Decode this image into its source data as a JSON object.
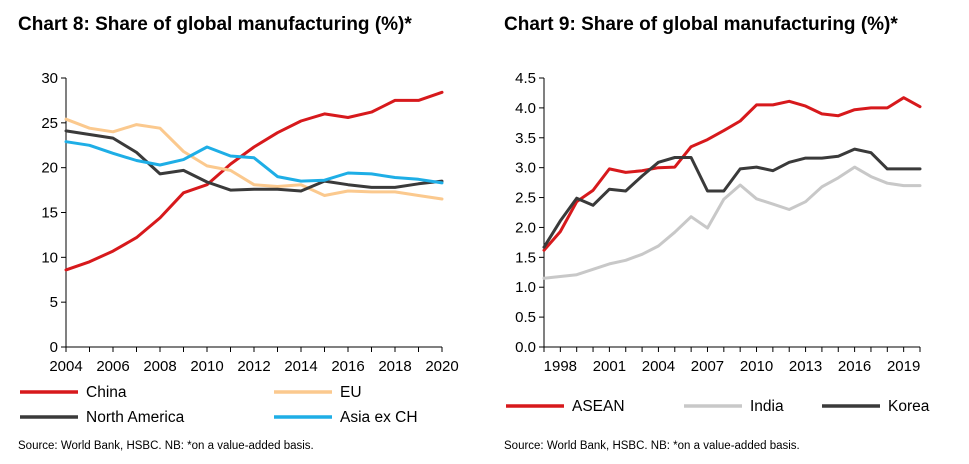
{
  "chart_data": [
    {
      "type": "line",
      "title": "Chart 8: Share of global manufacturing (%)*",
      "source": "Source: World Bank, HSBC. NB: *on a value-added basis.",
      "x": [
        2004,
        2005,
        2006,
        2007,
        2008,
        2009,
        2010,
        2011,
        2012,
        2013,
        2014,
        2015,
        2016,
        2017,
        2018,
        2019,
        2020
      ],
      "xticks": [
        "2004",
        "2006",
        "2008",
        "2010",
        "2012",
        "2014",
        "2016",
        "2018",
        "2020"
      ],
      "yticks": [
        "0",
        "5",
        "10",
        "15",
        "20",
        "25",
        "30"
      ],
      "ylim": [
        0,
        30
      ],
      "xlim": [
        2004,
        2020
      ],
      "grid": false,
      "legend_position": "bottom",
      "series": [
        {
          "name": "China",
          "color": "#d7191c",
          "values": [
            8.6,
            9.5,
            10.7,
            12.2,
            14.4,
            17.2,
            18.1,
            20.4,
            22.3,
            23.9,
            25.2,
            26.0,
            25.6,
            26.2,
            27.5,
            27.5,
            28.4
          ]
        },
        {
          "name": "EU",
          "color": "#fbc98e",
          "values": [
            25.4,
            24.4,
            24.0,
            24.8,
            24.4,
            21.8,
            20.2,
            19.7,
            18.1,
            17.9,
            18.1,
            16.9,
            17.4,
            17.3,
            17.3,
            16.9,
            16.5
          ]
        },
        {
          "name": "North America",
          "color": "#3a3a3a",
          "values": [
            24.1,
            23.7,
            23.3,
            21.7,
            19.3,
            19.7,
            18.4,
            17.5,
            17.6,
            17.6,
            17.4,
            18.5,
            18.1,
            17.8,
            17.8,
            18.2,
            18.5
          ]
        },
        {
          "name": "Asia ex CH",
          "color": "#1eaee6",
          "values": [
            22.9,
            22.5,
            21.6,
            20.8,
            20.3,
            20.9,
            22.3,
            21.3,
            21.1,
            19.0,
            18.5,
            18.6,
            19.4,
            19.3,
            18.9,
            18.7,
            18.3
          ]
        }
      ]
    },
    {
      "type": "line",
      "title": "Chart 9: Share of global manufacturing (%)*",
      "source": "Source: World Bank, HSBC. NB: *on a value-added basis.",
      "x": [
        1997,
        1998,
        1999,
        2000,
        2001,
        2002,
        2003,
        2004,
        2005,
        2006,
        2007,
        2008,
        2009,
        2010,
        2011,
        2012,
        2013,
        2014,
        2015,
        2016,
        2017,
        2018,
        2019,
        2020
      ],
      "xticks": [
        "1998",
        "2001",
        "2004",
        "2007",
        "2010",
        "2013",
        "2016",
        "2019"
      ],
      "yticks": [
        "0.0",
        "0.5",
        "1.0",
        "1.5",
        "2.0",
        "2.5",
        "3.0",
        "3.5",
        "4.0",
        "4.5"
      ],
      "ylim": [
        0,
        4.5
      ],
      "xlim": [
        1997,
        2020
      ],
      "grid": false,
      "legend_position": "bottom",
      "series": [
        {
          "name": "ASEAN",
          "color": "#d7191c",
          "values": [
            1.62,
            1.93,
            2.43,
            2.62,
            2.98,
            2.92,
            2.95,
            3.0,
            3.01,
            3.35,
            3.47,
            3.62,
            3.78,
            4.05,
            4.05,
            4.11,
            4.03,
            3.9,
            3.87,
            3.97,
            4.0,
            4.0,
            4.17,
            4.02
          ]
        },
        {
          "name": "India",
          "color": "#c8c8c8",
          "values": [
            1.15,
            1.18,
            1.21,
            1.3,
            1.39,
            1.45,
            1.55,
            1.69,
            1.92,
            2.18,
            1.99,
            2.47,
            2.71,
            2.48,
            2.39,
            2.3,
            2.43,
            2.68,
            2.83,
            3.01,
            2.85,
            2.74,
            2.7,
            2.7
          ]
        },
        {
          "name": "Korea",
          "color": "#3a3a3a",
          "values": [
            1.67,
            2.11,
            2.49,
            2.37,
            2.64,
            2.61,
            2.86,
            3.09,
            3.17,
            3.17,
            2.61,
            2.61,
            2.98,
            3.01,
            2.95,
            3.09,
            3.16,
            3.16,
            3.19,
            3.31,
            3.25,
            2.98,
            2.98,
            2.98
          ]
        }
      ]
    }
  ]
}
